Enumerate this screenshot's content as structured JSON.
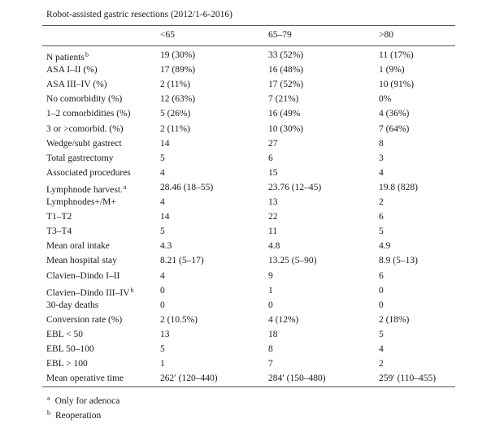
{
  "table": {
    "title": "Robot-assisted gastric resections (2012/1-6-2016)",
    "columns": [
      "<65",
      "65–79",
      ">80"
    ],
    "rows": [
      {
        "label": "N patients",
        "sup": "b",
        "cells": [
          "19 (30%)",
          "33 (52%)",
          "11 (17%)"
        ]
      },
      {
        "label": "ASA I–II (%)",
        "cells": [
          "17 (89%)",
          "16 (48%)",
          "1 (9%)"
        ]
      },
      {
        "label": "ASA III–IV (%)",
        "cells": [
          "2 (11%)",
          "17 (52%)",
          "10 (91%)"
        ]
      },
      {
        "label": "No comorbidity (%)",
        "cells": [
          "12 (63%)",
          "7 (21%)",
          "0%"
        ]
      },
      {
        "label": "1–2 comorbidities (%)",
        "cells": [
          "5 (26%)",
          "16 (49%",
          "4 (36%)"
        ]
      },
      {
        "label": "3 or >comorbid. (%)",
        "cells": [
          "2 (11%)",
          "10 (30%)",
          "7 (64%)"
        ]
      },
      {
        "label": "Wedge/subt gastrect",
        "cells": [
          "14",
          "27",
          "8"
        ]
      },
      {
        "label": "Total gastrectomy",
        "cells": [
          "5",
          "6",
          "3"
        ]
      },
      {
        "label": "Associated procedures",
        "cells": [
          "4",
          "15",
          "4"
        ]
      },
      {
        "label": "Lymphnode harvest.",
        "sup": "a",
        "cells": [
          "28.46 (18–55)",
          "23.76 (12–45)",
          "19.8 (828)"
        ]
      },
      {
        "label": "Lymphnodes+/M+",
        "cells": [
          "4",
          "13",
          "2"
        ]
      },
      {
        "label": "T1–T2",
        "cells": [
          "14",
          "22",
          "6"
        ]
      },
      {
        "label": "T3–T4",
        "cells": [
          "5",
          "11",
          "5"
        ]
      },
      {
        "label": "Mean oral intake",
        "cells": [
          "4.3",
          "4.8",
          "4.9"
        ]
      },
      {
        "label": "Mean hospital stay",
        "cells": [
          "8.21 (5–17)",
          "13.25 (5–90)",
          "8.9 (5–13)"
        ]
      },
      {
        "label": "Clavien–Dindo I–II",
        "cells": [
          "4",
          "9",
          "6"
        ]
      },
      {
        "label": "Clavien–Dindo III–IV",
        "sup": "b",
        "cells": [
          "0",
          "1",
          "0"
        ]
      },
      {
        "label": "30-day deaths",
        "cells": [
          "0",
          "0",
          "0"
        ]
      },
      {
        "label": "Conversion rate (%)",
        "cells": [
          "2 (10.5%)",
          "4 (12%)",
          "2 (18%)"
        ]
      },
      {
        "label": "EBL < 50",
        "cells": [
          "13",
          "18",
          "5"
        ]
      },
      {
        "label": "EBL 50–100",
        "cells": [
          "5",
          "8",
          "4"
        ]
      },
      {
        "label": "EBL > 100",
        "cells": [
          "1",
          "7",
          "2"
        ]
      },
      {
        "label": "Mean operative time",
        "cells": [
          "262′ (120–440)",
          "284′ (150–480)",
          "259′ (110–455)"
        ]
      }
    ]
  },
  "footnotes": [
    {
      "mark": "a",
      "text": "Only for adenoca"
    },
    {
      "mark": "b",
      "text": "Reoperation"
    }
  ]
}
